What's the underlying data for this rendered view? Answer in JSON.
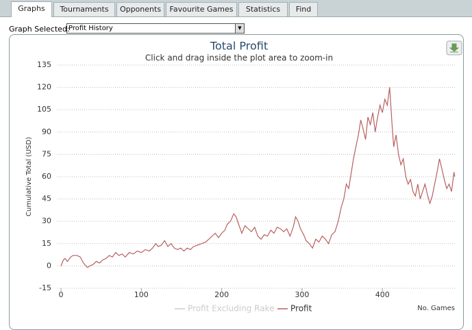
{
  "tabs": [
    "Graphs",
    "Tournaments",
    "Opponents",
    "Favourite Games",
    "Statistics",
    "Find"
  ],
  "active_tab": 0,
  "selector": {
    "label": "Graph Selected:",
    "value": "Profit History"
  },
  "chart_data": {
    "type": "line",
    "title": "Total Profit",
    "subtitle": "Click and drag inside the plot area to zoom-in",
    "y_label": "Cumulative Total (USD)",
    "x_label": "No. Games",
    "xlim": [
      0,
      491
    ],
    "xticks": [
      0,
      100,
      200,
      300,
      400
    ],
    "ylim": [
      -15,
      135
    ],
    "yticks": [
      -15,
      0,
      15,
      30,
      45,
      60,
      75,
      90,
      105,
      120,
      135
    ],
    "grid": true,
    "x": [
      0,
      3,
      5,
      8,
      12,
      15,
      20,
      24,
      28,
      31,
      33,
      36,
      40,
      44,
      48,
      52,
      56,
      60,
      64,
      68,
      72,
      76,
      80,
      85,
      90,
      95,
      100,
      105,
      110,
      114,
      118,
      121,
      125,
      129,
      133,
      137,
      141,
      145,
      149,
      153,
      157,
      161,
      165,
      170,
      175,
      180,
      184,
      188,
      192,
      196,
      200,
      204,
      207,
      211,
      215,
      218,
      221,
      225,
      229,
      233,
      237,
      241,
      245,
      249,
      253,
      257,
      261,
      265,
      269,
      273,
      277,
      281,
      285,
      289,
      292,
      295,
      298,
      302,
      305,
      309,
      313,
      317,
      321,
      325,
      329,
      333,
      337,
      341,
      345,
      349,
      352,
      355,
      358,
      361,
      364,
      367,
      370,
      373,
      376,
      379,
      382,
      385,
      388,
      391,
      394,
      397,
      400,
      403,
      406,
      409,
      412,
      414,
      417,
      420,
      423,
      426,
      429,
      432,
      435,
      438,
      441,
      444,
      447,
      450,
      453,
      456,
      459,
      462,
      465,
      468,
      471,
      474,
      477,
      480,
      483,
      486,
      489,
      490
    ],
    "series": [
      {
        "name": "Profit Excluding Rake",
        "color": "#cccccc",
        "visible": false
      },
      {
        "name": "Profit",
        "color": "#b8605f",
        "visible": true,
        "values": [
          0,
          4,
          5,
          3,
          6,
          7,
          7,
          6,
          2,
          0,
          -1,
          0,
          1,
          3,
          2,
          4,
          5,
          7,
          6,
          9,
          7,
          8,
          6,
          9,
          8,
          10,
          9,
          11,
          10,
          12,
          15,
          13,
          14,
          17,
          13,
          15,
          12,
          11,
          12,
          10,
          12,
          11,
          13,
          14,
          15,
          16,
          18,
          20,
          22,
          19,
          22,
          24,
          28,
          30,
          35,
          33,
          28,
          22,
          27,
          25,
          23,
          26,
          20,
          18,
          21,
          20,
          24,
          22,
          26,
          25,
          23,
          25,
          20,
          26,
          33,
          30,
          25,
          21,
          17,
          15,
          12,
          18,
          16,
          20,
          18,
          15,
          21,
          23,
          30,
          40,
          45,
          55,
          52,
          62,
          72,
          80,
          88,
          98,
          92,
          85,
          100,
          95,
          103,
          90,
          100,
          108,
          103,
          112,
          108,
          120,
          95,
          80,
          88,
          75,
          68,
          72,
          60,
          55,
          58,
          50,
          47,
          55,
          45,
          50,
          55,
          48,
          42,
          47,
          55,
          63,
          72,
          65,
          58,
          52,
          55,
          50,
          63,
          60
        ]
      }
    ]
  }
}
